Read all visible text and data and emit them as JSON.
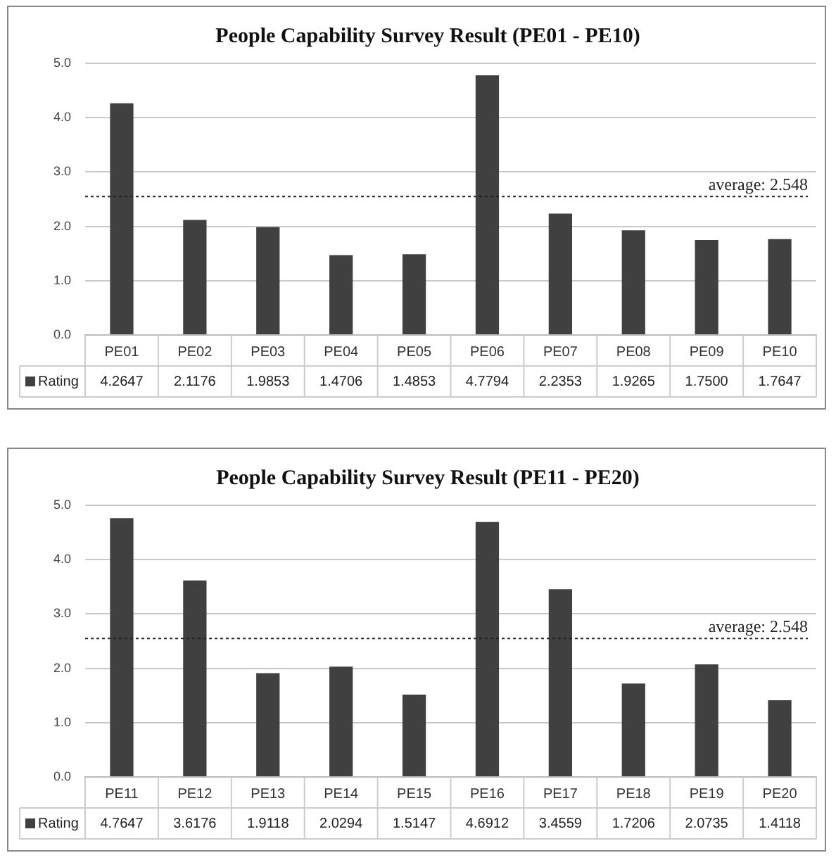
{
  "chart_data": [
    {
      "type": "bar",
      "title": "People Capability Survey Result (PE01 - PE10)",
      "categories": [
        "PE01",
        "PE02",
        "PE03",
        "PE04",
        "PE05",
        "PE06",
        "PE07",
        "PE08",
        "PE09",
        "PE10"
      ],
      "series": [
        {
          "name": "Rating",
          "color": "#404040",
          "values": [
            4.2647,
            2.1176,
            1.9853,
            1.4706,
            1.4853,
            4.7794,
            2.2353,
            1.9265,
            1.75,
            1.7647
          ],
          "value_labels": [
            "4.2647",
            "2.1176",
            "1.9853",
            "1.4706",
            "1.4853",
            "4.7794",
            "2.2353",
            "1.9265",
            "1.7500",
            "1.7647"
          ]
        }
      ],
      "ylim": [
        0,
        5
      ],
      "yticks": [
        {
          "value": 0,
          "label": "0.0"
        },
        {
          "value": 1,
          "label": "1.0"
        },
        {
          "value": 2,
          "label": "2.0"
        },
        {
          "value": 3,
          "label": "3.0"
        },
        {
          "value": 4,
          "label": "4.0"
        },
        {
          "value": 5,
          "label": "5.0"
        }
      ],
      "grid": "y",
      "legend": "bottom",
      "ref_lines": [
        {
          "axis": "y",
          "value": 2.548,
          "label": "average: 2.548",
          "line_style": "dotted",
          "color": "#222222"
        }
      ]
    },
    {
      "type": "bar",
      "title": "People Capability Survey Result (PE11 - PE20)",
      "categories": [
        "PE11",
        "PE12",
        "PE13",
        "PE14",
        "PE15",
        "PE16",
        "PE17",
        "PE18",
        "PE19",
        "PE20"
      ],
      "series": [
        {
          "name": "Rating",
          "color": "#404040",
          "values": [
            4.7647,
            3.6176,
            1.9118,
            2.0294,
            1.5147,
            4.6912,
            3.4559,
            1.7206,
            2.0735,
            1.4118
          ],
          "value_labels": [
            "4.7647",
            "3.6176",
            "1.9118",
            "2.0294",
            "1.5147",
            "4.6912",
            "3.4559",
            "1.7206",
            "2.0735",
            "1.4118"
          ]
        }
      ],
      "ylim": [
        0,
        5
      ],
      "yticks": [
        {
          "value": 0,
          "label": "0.0"
        },
        {
          "value": 1,
          "label": "1.0"
        },
        {
          "value": 2,
          "label": "2.0"
        },
        {
          "value": 3,
          "label": "3.0"
        },
        {
          "value": 4,
          "label": "4.0"
        },
        {
          "value": 5,
          "label": "5.0"
        }
      ],
      "grid": "y",
      "legend": "bottom",
      "ref_lines": [
        {
          "axis": "y",
          "value": 2.548,
          "label": "average: 2.548",
          "line_style": "dotted",
          "color": "#222222"
        }
      ]
    }
  ]
}
